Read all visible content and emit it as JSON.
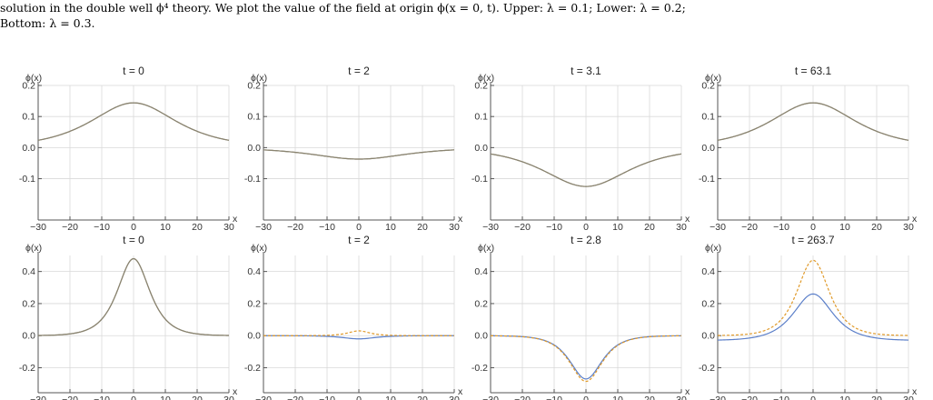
{
  "caption": {
    "line1": "solution in the double well ϕ⁴ theory. We plot the value of the field at origin ϕ(x = 0, t). Upper: λ = 0.1; Lower: λ = 0.2;",
    "line2": "Bottom: λ = 0.3."
  },
  "colors": {
    "solid": "#5b7fc9",
    "dashed": "#e09a2a",
    "overlap": "#8a8470"
  },
  "chart_data": [
    {
      "type": "line",
      "title": "t = 0",
      "xlabel": "x",
      "ylabel": "ϕ(x)",
      "xlim": [
        -30,
        30
      ],
      "ylim": [
        -0.23,
        0.2
      ],
      "xticks": [
        -30,
        -20,
        -10,
        0,
        10,
        20,
        30
      ],
      "yticks": [
        -0.1,
        0.0,
        0.1,
        0.2
      ],
      "ytick_labels": [
        "-0.1",
        "0.0",
        "0.1",
        "0.2"
      ],
      "series": [
        {
          "style": "solid",
          "amp": 0.144,
          "width": 12,
          "offset": 0.0
        },
        {
          "style": "dashed",
          "amp": 0.144,
          "width": 12,
          "offset": 0.0
        }
      ]
    },
    {
      "type": "line",
      "title": "t = 2",
      "xlabel": "x",
      "ylabel": "ϕ(x)",
      "xlim": [
        -30,
        30
      ],
      "ylim": [
        -0.23,
        0.2
      ],
      "xticks": [
        -30,
        -20,
        -10,
        0,
        10,
        20,
        30
      ],
      "yticks": [
        -0.1,
        0.0,
        0.1,
        0.2
      ],
      "ytick_labels": [
        "-0.1",
        "0.0",
        "0.1",
        "0.2"
      ],
      "series": [
        {
          "style": "solid",
          "amp": -0.037,
          "width": 13,
          "offset": 0.0
        },
        {
          "style": "dashed",
          "amp": -0.037,
          "width": 13,
          "offset": 0.0
        }
      ]
    },
    {
      "type": "line",
      "title": "t = 3.1",
      "xlabel": "x",
      "ylabel": "ϕ(x)",
      "xlim": [
        -30,
        30
      ],
      "ylim": [
        -0.23,
        0.2
      ],
      "xticks": [
        -30,
        -20,
        -10,
        0,
        10,
        20,
        30
      ],
      "yticks": [
        -0.1,
        0.0,
        0.1,
        0.2
      ],
      "ytick_labels": [
        "-0.1",
        "0.0",
        "0.1",
        "0.2"
      ],
      "series": [
        {
          "style": "solid",
          "amp": -0.125,
          "width": 12,
          "offset": 0.0
        },
        {
          "style": "dashed",
          "amp": -0.125,
          "width": 12,
          "offset": 0.0
        }
      ]
    },
    {
      "type": "line",
      "title": "t = 63.1",
      "xlabel": "x",
      "ylabel": "ϕ(x)",
      "xlim": [
        -30,
        30
      ],
      "ylim": [
        -0.23,
        0.2
      ],
      "xticks": [
        -30,
        -20,
        -10,
        0,
        10,
        20,
        30
      ],
      "yticks": [
        -0.1,
        0.0,
        0.1,
        0.2
      ],
      "ytick_labels": [
        "-0.1",
        "0.0",
        "0.1",
        "0.2"
      ],
      "series": [
        {
          "style": "solid",
          "amp": 0.144,
          "width": 12,
          "offset": 0.0
        },
        {
          "style": "dashed",
          "amp": 0.144,
          "width": 12,
          "offset": 0.0
        }
      ]
    },
    {
      "type": "line",
      "title": "t = 0",
      "xlabel": "x",
      "ylabel": "ϕ(x)",
      "xlim": [
        -30,
        30
      ],
      "ylim": [
        -0.35,
        0.5
      ],
      "xticks": [
        -30,
        -20,
        -10,
        0,
        10,
        20,
        30
      ],
      "yticks": [
        -0.2,
        0.0,
        0.2,
        0.4
      ],
      "ytick_labels": [
        "-0.2",
        "0.0",
        "0.2",
        "0.4"
      ],
      "series": [
        {
          "style": "solid",
          "amp": 0.48,
          "width": 4.5,
          "offset": 0.0
        },
        {
          "style": "dashed",
          "amp": 0.48,
          "width": 4.5,
          "offset": 0.0
        }
      ]
    },
    {
      "type": "line",
      "title": "t = 2",
      "xlabel": "x",
      "ylabel": "ϕ(x)",
      "xlim": [
        -30,
        30
      ],
      "ylim": [
        -0.35,
        0.5
      ],
      "xticks": [
        -30,
        -20,
        -10,
        0,
        10,
        20,
        30
      ],
      "yticks": [
        -0.2,
        0.0,
        0.2,
        0.4
      ],
      "ytick_labels": [
        "-0.2",
        "0.0",
        "0.2",
        "0.4"
      ],
      "series": [
        {
          "style": "solid",
          "amp": -0.02,
          "width": 4.5,
          "offset": 0.0
        },
        {
          "style": "dashed",
          "amp": 0.03,
          "width": 3.0,
          "offset": 0.0
        }
      ]
    },
    {
      "type": "line",
      "title": "t = 2.8",
      "xlabel": "x",
      "ylabel": "ϕ(x)",
      "xlim": [
        -30,
        30
      ],
      "ylim": [
        -0.35,
        0.5
      ],
      "xticks": [
        -30,
        -20,
        -10,
        0,
        10,
        20,
        30
      ],
      "yticks": [
        -0.2,
        0.0,
        0.2,
        0.4
      ],
      "ytick_labels": [
        "-0.2",
        "0.0",
        "0.2",
        "0.4"
      ],
      "series": [
        {
          "style": "solid",
          "amp": -0.27,
          "width": 4.5,
          "offset": 0.0
        },
        {
          "style": "dashed",
          "amp": -0.285,
          "width": 4.5,
          "offset": 0.0
        }
      ]
    },
    {
      "type": "line",
      "title": "t = 263.7",
      "xlabel": "x",
      "ylabel": "ϕ(x)",
      "xlim": [
        -30,
        30
      ],
      "ylim": [
        -0.35,
        0.5
      ],
      "xticks": [
        -30,
        -20,
        -10,
        0,
        10,
        20,
        30
      ],
      "yticks": [
        -0.2,
        0.0,
        0.2,
        0.4
      ],
      "ytick_labels": [
        "-0.2",
        "0.0",
        "0.2",
        "0.4"
      ],
      "series": [
        {
          "style": "solid",
          "amp": 0.29,
          "width": 5.5,
          "offset": -0.03
        },
        {
          "style": "dashed",
          "amp": 0.47,
          "width": 4.5,
          "offset": 0.0
        }
      ]
    }
  ]
}
